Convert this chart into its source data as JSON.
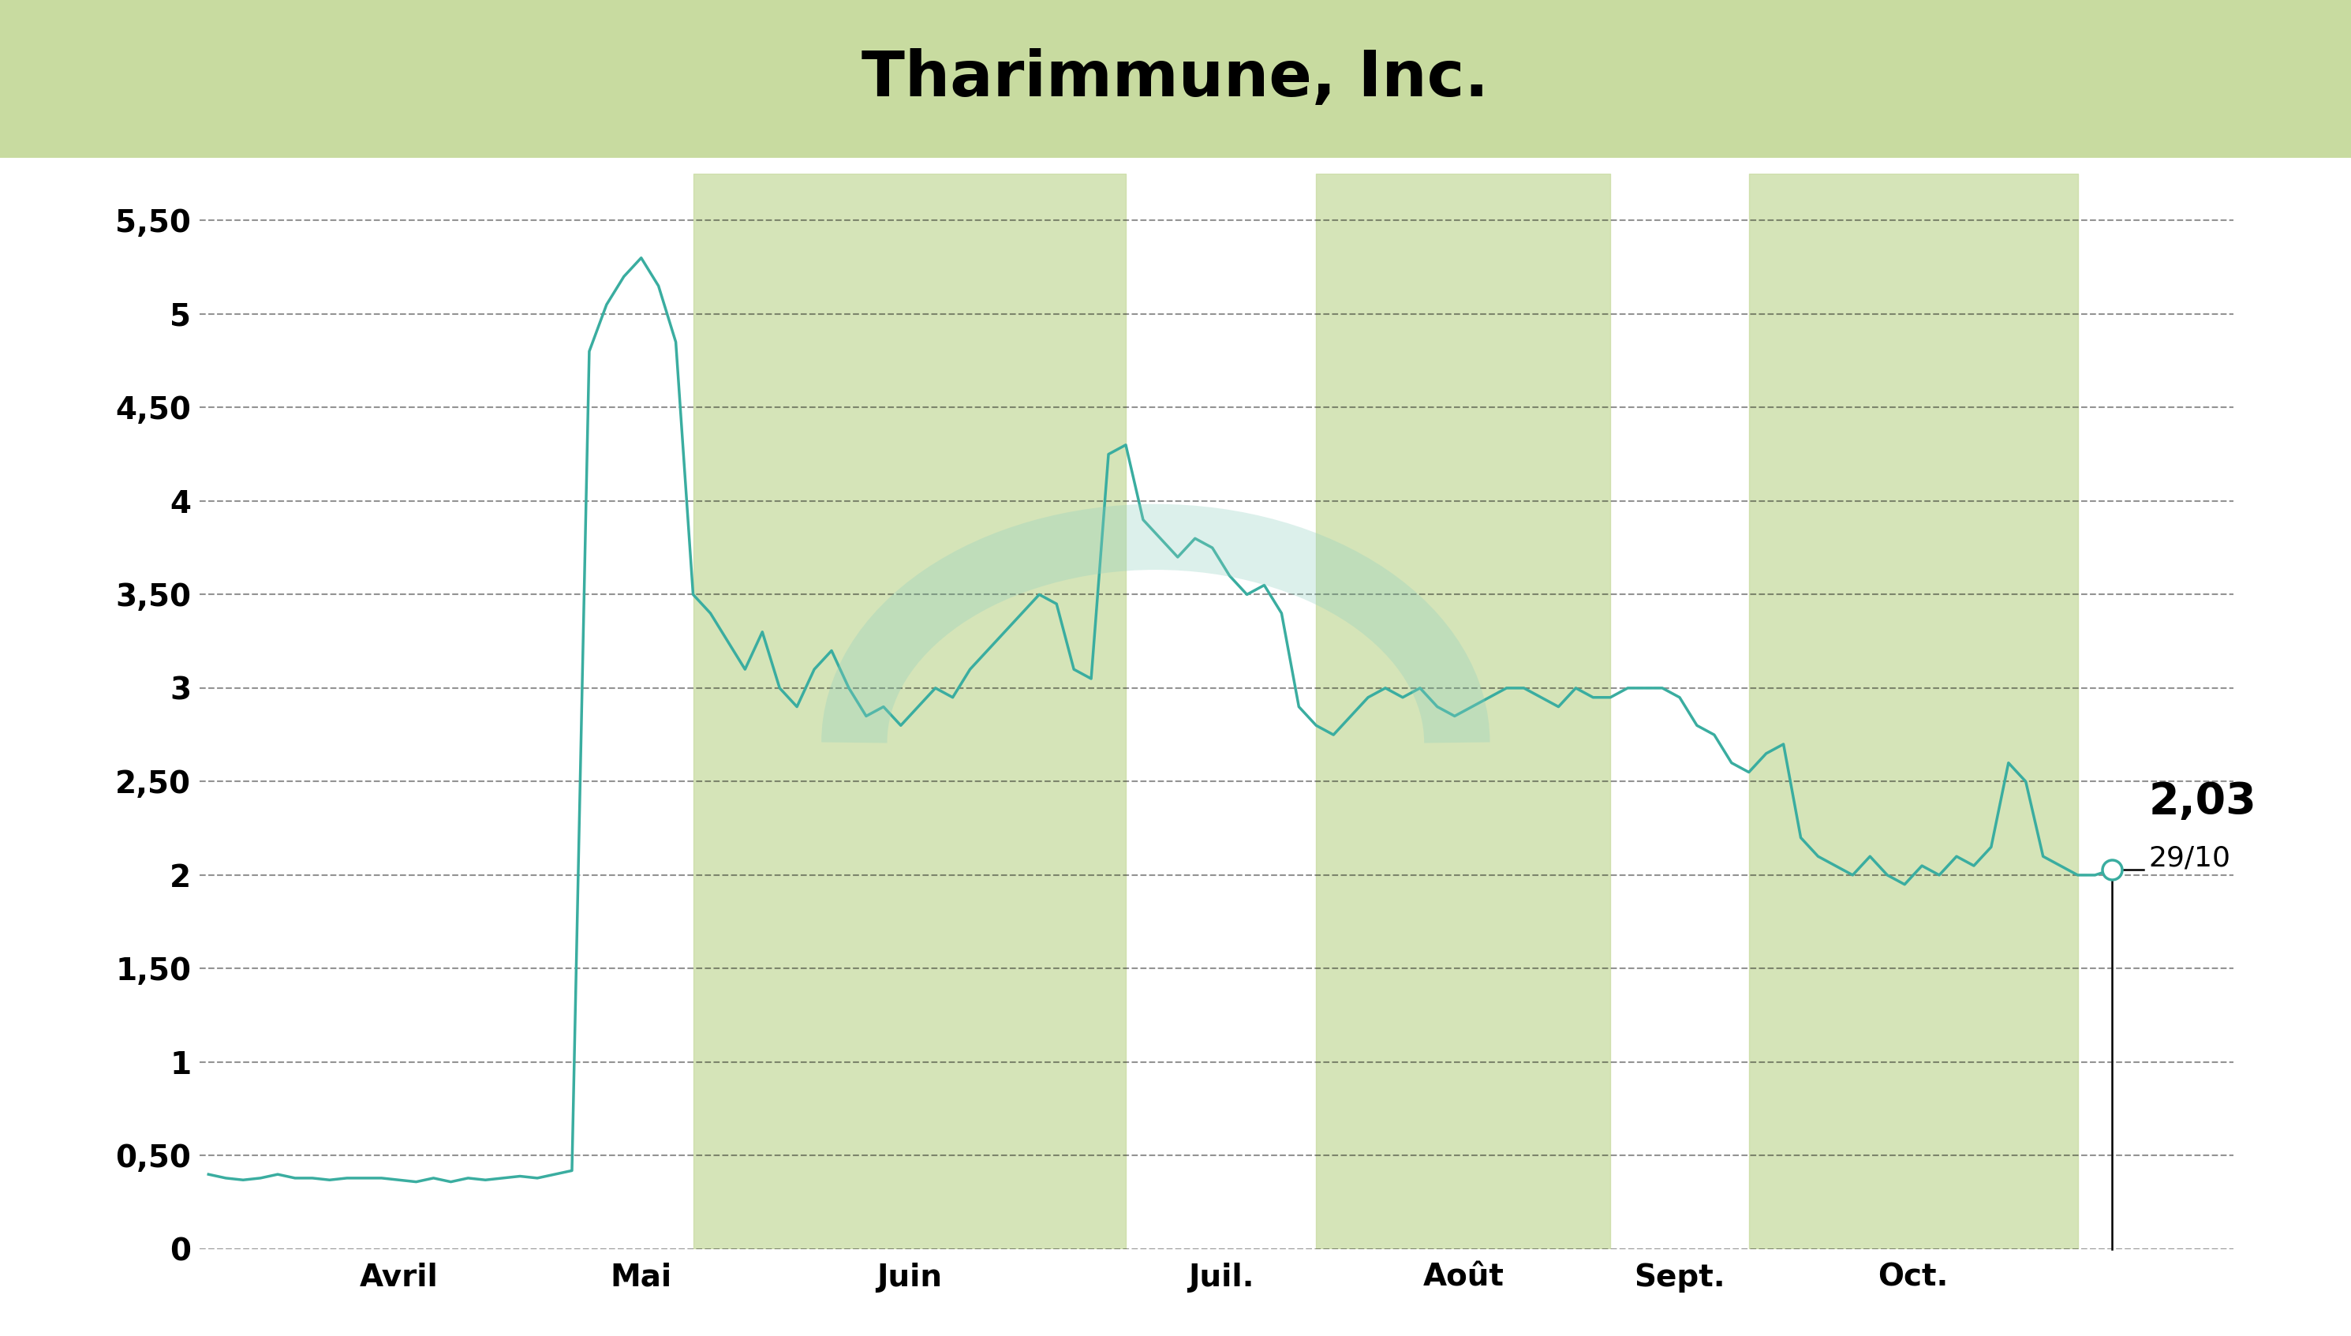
{
  "title": "Tharimmune, Inc.",
  "title_bg_color": "#c8dba0",
  "chart_bg_color": "#ffffff",
  "line_color": "#3aada0",
  "fill_color": "#c8dba0",
  "fill_alpha": 0.75,
  "last_price_str": "2,03",
  "last_date_label": "29/10",
  "ylim_min": 0,
  "ylim_max": 5.75,
  "yticks": [
    0,
    0.5,
    1.0,
    1.5,
    2.0,
    2.5,
    3.0,
    3.5,
    4.0,
    4.5,
    5.0,
    5.5
  ],
  "ytick_labels": [
    "0",
    "0,50",
    "1",
    "1,50",
    "2",
    "2,50",
    "3",
    "3,50",
    "4",
    "4,50",
    "5",
    "5,50"
  ],
  "grid_color": "#111111",
  "grid_alpha": 0.45,
  "month_labels": [
    "Avril",
    "Mai",
    "Juin",
    "Juil.",
    "Août",
    "Sept.",
    "Oct."
  ],
  "shaded_months_idx": [
    2,
    4,
    6
  ],
  "line_width": 2.5,
  "prices": [
    0.4,
    0.38,
    0.37,
    0.38,
    0.4,
    0.38,
    0.38,
    0.37,
    0.38,
    0.38,
    0.38,
    0.37,
    0.36,
    0.38,
    0.36,
    0.38,
    0.37,
    0.38,
    0.39,
    0.38,
    0.4,
    0.42,
    4.8,
    5.05,
    5.2,
    5.3,
    5.15,
    4.85,
    3.5,
    3.4,
    3.25,
    3.1,
    3.3,
    3.0,
    2.9,
    3.1,
    3.2,
    3.0,
    2.85,
    2.9,
    2.8,
    2.9,
    3.0,
    2.95,
    3.1,
    3.2,
    3.3,
    3.4,
    3.5,
    3.45,
    3.1,
    3.05,
    4.25,
    4.3,
    3.9,
    3.8,
    3.7,
    3.8,
    3.75,
    3.6,
    3.5,
    3.55,
    3.4,
    2.9,
    2.8,
    2.75,
    2.85,
    2.95,
    3.0,
    2.95,
    3.0,
    2.9,
    2.85,
    2.9,
    2.95,
    3.0,
    3.0,
    2.95,
    2.9,
    3.0,
    2.95,
    2.95,
    3.0,
    3.0,
    3.0,
    2.95,
    2.8,
    2.75,
    2.6,
    2.55,
    2.65,
    2.7,
    2.2,
    2.1,
    2.05,
    2.0,
    2.1,
    2.0,
    1.95,
    2.05,
    2.0,
    2.1,
    2.05,
    2.15,
    2.6,
    2.5,
    2.1,
    2.05,
    2.0,
    2.0,
    2.03
  ],
  "month_boundaries": [
    0,
    22,
    28,
    53,
    64,
    81,
    89,
    108
  ],
  "tick_fontsize": 28,
  "annotation_price_fontsize": 40,
  "annotation_date_fontsize": 26,
  "title_fontsize": 58
}
